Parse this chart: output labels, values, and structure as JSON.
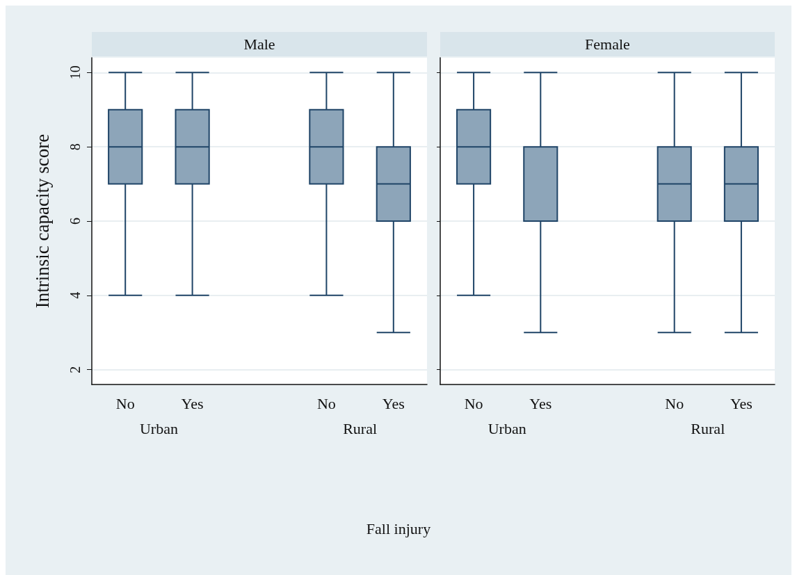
{
  "chart_data": [
    {
      "type": "box",
      "title": "Male",
      "ylabel": "Intrinsic capacity score",
      "xlabel": "Fall injury",
      "categories": [
        "No",
        "Yes",
        null,
        "No",
        "Yes"
      ],
      "annotations": [
        "Urban",
        "Rural"
      ],
      "color": "#8da5b9",
      "ylim": [
        1.6,
        10.4
      ],
      "yticks": [
        2,
        4,
        6,
        8,
        10
      ],
      "grid": "y",
      "boxes": [
        {
          "low": 4,
          "q1": 7,
          "median": 8,
          "q3": 9,
          "high": 10
        },
        {
          "low": 4,
          "q1": 7,
          "median": 8,
          "q3": 9,
          "high": 10
        },
        null,
        {
          "low": 4,
          "q1": 7,
          "median": 8,
          "q3": 9,
          "high": 10
        },
        {
          "low": 3,
          "q1": 6,
          "median": 7,
          "q3": 8,
          "high": 10
        }
      ]
    },
    {
      "type": "box",
      "title": "Female",
      "categories": [
        "No",
        "Yes",
        null,
        "No",
        "Yes"
      ],
      "annotations": [
        "Urban",
        "Rural"
      ],
      "color": "#8da5b9",
      "ylim": [
        1.6,
        10.4
      ],
      "yticks": [
        2,
        4,
        6,
        8,
        10
      ],
      "grid": "y",
      "tick_labels": "x",
      "boxes": [
        {
          "low": 4,
          "q1": 7,
          "median": 8,
          "q3": 9,
          "high": 10
        },
        {
          "low": 3,
          "q1": 6,
          "median": 8,
          "q3": 8,
          "high": 10
        },
        null,
        {
          "low": 3,
          "q1": 6,
          "median": 7,
          "q3": 8,
          "high": 10
        },
        {
          "low": 3,
          "q1": 6,
          "median": 7,
          "q3": 8,
          "high": 10
        }
      ]
    }
  ]
}
